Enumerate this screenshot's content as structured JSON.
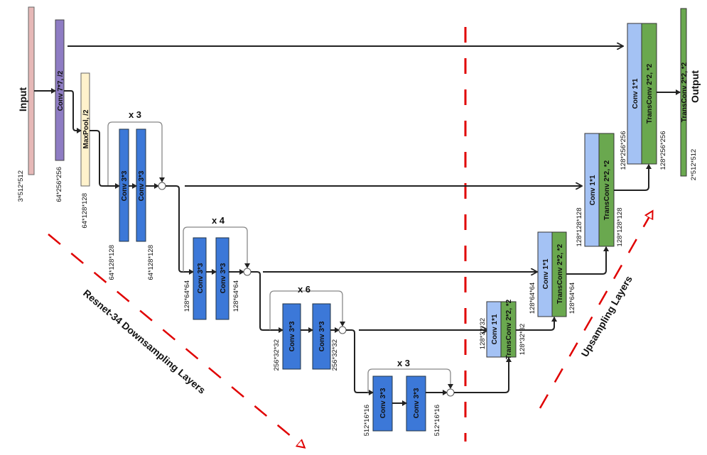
{
  "input": {
    "label": "Input",
    "dims": "3*512*512"
  },
  "conv7": {
    "label": "Conv 7*7, /2",
    "dims": "64*256*256"
  },
  "maxpool": {
    "label": "MaxPool, /2",
    "dims": "64*128*128"
  },
  "res_blocks": [
    {
      "repeat": "x 3",
      "conv1": "Conv 3*3",
      "conv2": "Conv 3*3",
      "in_dims": "64*128*128",
      "out_dims": "64*128*128"
    },
    {
      "repeat": "x 4",
      "conv1": "Conv 3*3",
      "conv2": "Conv 3*3",
      "in_dims": "128*64*64",
      "out_dims": "128*64*64"
    },
    {
      "repeat": "x 6",
      "conv1": "Conv 3*3",
      "conv2": "Conv 3*3",
      "in_dims": "256*32*32",
      "out_dims": "256*32*32"
    },
    {
      "repeat": "x 3",
      "conv1": "Conv 3*3",
      "conv2": "Conv 3*3",
      "in_dims": "512*16*16",
      "out_dims": "512*16*16"
    }
  ],
  "up_blocks": [
    {
      "conv": "Conv 1*1",
      "trans": "TransConv 2*2, *2",
      "in_dims": "128*32*32",
      "out_dims": "128*32*32"
    },
    {
      "conv": "Conv 1*1",
      "trans": "TransConv 2*2, *2",
      "in_dims": "128*64*64",
      "out_dims": "128*64*64"
    },
    {
      "conv": "Conv 1*1",
      "trans": "TransConv 2*2, *2",
      "in_dims": "128*128*128",
      "out_dims": "128*128*128"
    },
    {
      "conv": "Conv 1*1",
      "trans": "TransConv 2*2, *2",
      "in_dims": "128*256*256",
      "out_dims": "128*256*256"
    }
  ],
  "output": {
    "label": "Output",
    "layer": "TransConv 2*2, *2",
    "dims": "2*512*512"
  },
  "annotations": {
    "down": "Resnet-34 Downsampling Layers",
    "up": "Upsampling Layers"
  },
  "colors": {
    "input": "#e6b8b7",
    "conv7": "#8e7cc3",
    "maxpool": "#fff2cc",
    "resconv": "#3c78d8",
    "conv1x1": "#a4c2f4",
    "transconv": "#6aa84f",
    "dashed": "#e00000"
  }
}
